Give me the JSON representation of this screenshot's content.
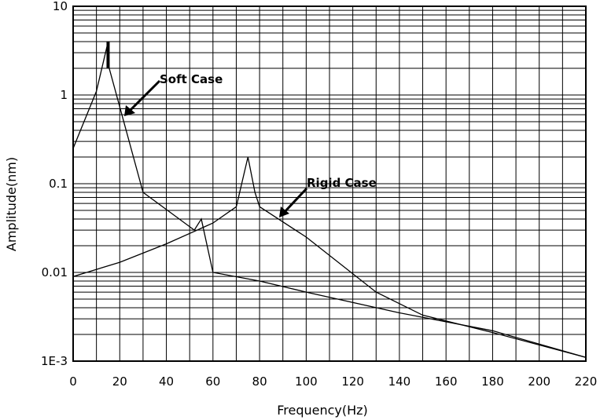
{
  "chart_data": {
    "type": "line",
    "xlabel": "Frequency(Hz)",
    "ylabel": "Amplitude(nm)",
    "xlim": [
      0,
      220
    ],
    "ylim": [
      0.001,
      10
    ],
    "yscale": "log",
    "grid": true,
    "x_ticks": [
      "0",
      "20",
      "40",
      "60",
      "80",
      "100",
      "120",
      "140",
      "160",
      "180",
      "200",
      "220"
    ],
    "y_ticks": [
      "1E-3",
      "0.01",
      "0.1",
      "1",
      "10"
    ],
    "series": [
      {
        "name": "Soft Case",
        "x": [
          0,
          10,
          15,
          15.5,
          30,
          52,
          55,
          60,
          80,
          100,
          140,
          180,
          220
        ],
        "y": [
          0.25,
          1.1,
          4.0,
          2.0,
          0.08,
          0.03,
          0.04,
          0.01,
          0.008,
          0.006,
          0.0035,
          0.0022,
          0.0011
        ]
      },
      {
        "name": "Rigid Case",
        "x": [
          0,
          20,
          40,
          60,
          70,
          75,
          78,
          80,
          100,
          130,
          150,
          180,
          220
        ],
        "y": [
          0.009,
          0.013,
          0.021,
          0.036,
          0.055,
          0.2,
          0.08,
          0.055,
          0.025,
          0.006,
          0.0033,
          0.0021,
          0.0011
        ]
      }
    ],
    "annotations": [
      {
        "text": "Soft Case",
        "series": "Soft Case"
      },
      {
        "text": "Rigid Case",
        "series": "Rigid Case"
      }
    ]
  }
}
